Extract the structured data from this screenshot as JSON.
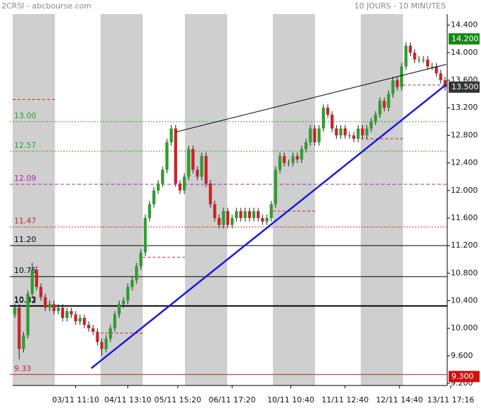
{
  "chart_data": {
    "type": "candlestick",
    "title": "2CRSI - abcbourse.com",
    "subtitle": "10 JOURS - 10 MINUTES",
    "up_color": "#2e9e2e",
    "down_color": "#c8242b",
    "open": [
      10.2,
      10.3,
      9.7,
      9.9,
      10.5,
      10.85,
      10.6,
      10.45,
      10.3,
      10.35,
      10.25,
      10.3,
      10.15,
      10.25,
      10.2,
      10.1,
      10.15,
      10.05,
      10.0,
      9.95,
      9.8,
      9.7,
      9.85,
      10.0,
      10.2,
      10.35,
      10.4,
      10.6,
      10.7,
      10.9,
      11.1,
      11.6,
      11.8,
      12.0,
      12.1,
      12.3,
      12.7,
      12.9,
      12.1,
      12.0,
      12.2,
      12.6,
      12.3,
      12.2,
      12.5,
      12.1,
      11.8,
      11.6,
      11.5,
      11.7,
      11.5,
      11.6,
      11.7,
      11.6,
      11.7,
      11.6,
      11.7,
      11.6,
      11.55,
      11.6,
      11.8,
      12.3,
      12.5,
      12.4,
      12.4,
      12.5,
      12.45,
      12.6,
      12.7,
      12.9,
      12.7,
      12.9,
      13.2,
      13.1,
      12.9,
      12.8,
      12.9,
      12.8,
      12.8,
      12.75,
      12.9,
      12.8,
      12.9,
      13.0,
      13.1,
      13.3,
      13.2,
      13.4,
      13.6,
      13.5,
      13.8,
      14.1,
      14.0,
      13.9,
      13.9,
      13.9,
      13.8,
      13.8,
      13.7,
      13.6
    ],
    "high": [
      10.35,
      10.35,
      9.95,
      10.55,
      10.95,
      10.9,
      10.65,
      10.5,
      10.4,
      10.4,
      10.35,
      10.35,
      10.3,
      10.3,
      10.25,
      10.2,
      10.2,
      10.1,
      10.05,
      10.0,
      9.85,
      9.9,
      10.05,
      10.25,
      10.4,
      10.45,
      10.65,
      10.75,
      10.95,
      11.15,
      11.65,
      11.85,
      12.05,
      12.15,
      12.35,
      12.75,
      12.95,
      12.95,
      12.15,
      12.25,
      12.65,
      12.65,
      12.35,
      12.55,
      12.55,
      12.15,
      11.85,
      11.65,
      11.75,
      11.75,
      11.65,
      11.75,
      11.75,
      11.75,
      11.75,
      11.75,
      11.75,
      11.65,
      11.65,
      11.85,
      12.35,
      12.55,
      12.55,
      12.45,
      12.55,
      12.55,
      12.65,
      12.75,
      12.95,
      12.95,
      12.95,
      13.25,
      13.25,
      13.15,
      12.95,
      12.95,
      12.95,
      12.85,
      12.85,
      12.95,
      12.95,
      12.95,
      13.05,
      13.15,
      13.35,
      13.35,
      13.45,
      13.65,
      13.65,
      13.85,
      14.15,
      14.15,
      14.05,
      13.95,
      13.95,
      13.95,
      13.85,
      13.85,
      13.75,
      13.65
    ],
    "low": [
      10.15,
      9.55,
      9.65,
      9.85,
      10.45,
      10.55,
      10.4,
      10.25,
      10.25,
      10.2,
      10.2,
      10.1,
      10.1,
      10.15,
      10.05,
      10.05,
      10.0,
      9.95,
      9.9,
      9.75,
      9.6,
      9.65,
      9.8,
      9.95,
      10.15,
      10.3,
      10.35,
      10.55,
      10.65,
      10.85,
      11.05,
      11.55,
      11.75,
      11.95,
      12.05,
      12.25,
      12.65,
      12.05,
      11.95,
      11.95,
      12.15,
      12.25,
      12.15,
      12.15,
      12.05,
      11.75,
      11.55,
      11.45,
      11.45,
      11.45,
      11.45,
      11.55,
      11.55,
      11.55,
      11.55,
      11.55,
      11.55,
      11.5,
      11.5,
      11.55,
      11.75,
      12.25,
      12.35,
      12.35,
      12.35,
      12.4,
      12.4,
      12.55,
      12.65,
      12.65,
      12.65,
      12.85,
      13.05,
      12.85,
      12.75,
      12.75,
      12.75,
      12.75,
      12.7,
      12.7,
      12.75,
      12.75,
      12.85,
      12.95,
      13.05,
      13.15,
      13.15,
      13.35,
      13.45,
      13.45,
      13.75,
      13.95,
      13.85,
      13.85,
      13.85,
      13.75,
      13.75,
      13.65,
      13.55,
      13.45
    ],
    "close": [
      10.3,
      9.7,
      9.9,
      10.5,
      10.85,
      10.6,
      10.45,
      10.3,
      10.35,
      10.25,
      10.3,
      10.15,
      10.25,
      10.2,
      10.1,
      10.15,
      10.05,
      10.0,
      9.95,
      9.8,
      9.7,
      9.85,
      10.0,
      10.2,
      10.35,
      10.4,
      10.6,
      10.7,
      10.9,
      11.1,
      11.6,
      11.8,
      12.0,
      12.1,
      12.3,
      12.7,
      12.9,
      12.1,
      12.0,
      12.2,
      12.6,
      12.3,
      12.2,
      12.5,
      12.1,
      11.8,
      11.6,
      11.5,
      11.7,
      11.5,
      11.6,
      11.7,
      11.6,
      11.7,
      11.6,
      11.7,
      11.6,
      11.55,
      11.6,
      11.8,
      12.3,
      12.5,
      12.4,
      12.4,
      12.5,
      12.45,
      12.6,
      12.7,
      12.9,
      12.7,
      12.9,
      13.2,
      13.1,
      12.9,
      12.8,
      12.9,
      12.8,
      12.8,
      12.75,
      12.9,
      12.8,
      12.9,
      13.0,
      13.1,
      13.3,
      13.2,
      13.4,
      13.6,
      13.5,
      13.8,
      14.1,
      14.0,
      13.9,
      13.9,
      13.9,
      13.8,
      13.8,
      13.7,
      13.6,
      13.5
    ],
    "xlim": [
      -0.5,
      99.5
    ],
    "xticks": [
      {
        "value": 14,
        "label": "03/11 11:10"
      },
      {
        "value": 26,
        "label": "04/11 13:10"
      },
      {
        "value": 37.5,
        "label": "05/11 15:20"
      },
      {
        "value": 50,
        "label": "06/11 17:20"
      },
      {
        "value": 63.5,
        "label": "10/11 10:40"
      },
      {
        "value": 76,
        "label": "11/11 12:40"
      },
      {
        "value": 88.5,
        "label": "12/11 14:40"
      },
      {
        "value": 100.3,
        "label": "13/11 17:16"
      }
    ],
    "ylim": [
      9.17,
      14.56
    ],
    "yticks": [
      {
        "value": 9.2,
        "label": "9.200"
      },
      {
        "value": 9.6,
        "label": "9.600"
      },
      {
        "value": 10,
        "label": "10.000"
      },
      {
        "value": 10.4,
        "label": "10.400"
      },
      {
        "value": 10.8,
        "label": "10.800"
      },
      {
        "value": 11.2,
        "label": "11.200"
      },
      {
        "value": 11.6,
        "label": "11.600"
      },
      {
        "value": 12,
        "label": "12.000"
      },
      {
        "value": 12.4,
        "label": "12.400"
      },
      {
        "value": 12.8,
        "label": "12.800"
      },
      {
        "value": 13.2,
        "label": "13.200"
      },
      {
        "value": 13.6,
        "label": "13.600"
      },
      {
        "value": 14,
        "label": "14.000"
      },
      {
        "value": 14.4,
        "label": "14.400"
      }
    ],
    "levels": [
      {
        "value": 13.0,
        "label": "13.00",
        "color": "#2e9e2e",
        "style": "dotted"
      },
      {
        "value": 12.57,
        "label": "12.57",
        "color": "#2e9e2e",
        "style": "dotted"
      },
      {
        "value": 12.09,
        "label": "12.09",
        "color": "#b020b0",
        "style": "dashed"
      },
      {
        "value": 11.47,
        "label": "11.47",
        "color": "#c8242b",
        "style": "dotted"
      },
      {
        "value": 11.2,
        "label": "11.20",
        "color": "#000000",
        "style": "solid"
      },
      {
        "value": 10.75,
        "label": "10.75",
        "color": "#000000",
        "style": "solid"
      },
      {
        "value": 10.33,
        "label": "10.33",
        "color": "#000000",
        "style": "solid"
      },
      {
        "value": 10.32,
        "label": "10.32",
        "color": "#000000",
        "style": "solid"
      },
      {
        "value": 9.33,
        "label": "9.33",
        "color": "#c8242b",
        "style": "solid"
      }
    ],
    "short_levels": [
      13.32,
      9.93,
      11.03,
      11.7,
      12.75,
      13.53
    ],
    "trend_lines": [
      {
        "x": [
          17.6,
          99.3
        ],
        "y": [
          9.42,
          13.54
        ],
        "color": "#1a1adc"
      },
      {
        "x": [
          37.1,
          99.3
        ],
        "y": [
          12.85,
          13.83
        ],
        "color": "#000000"
      }
    ],
    "badges": [
      {
        "value": 14.2,
        "label": "14.200",
        "color": "#138a13"
      },
      {
        "value": 13.5,
        "label": "13.500",
        "color": "#333333"
      },
      {
        "value": 9.3,
        "label": "9.300",
        "color": "#d01010"
      }
    ]
  }
}
